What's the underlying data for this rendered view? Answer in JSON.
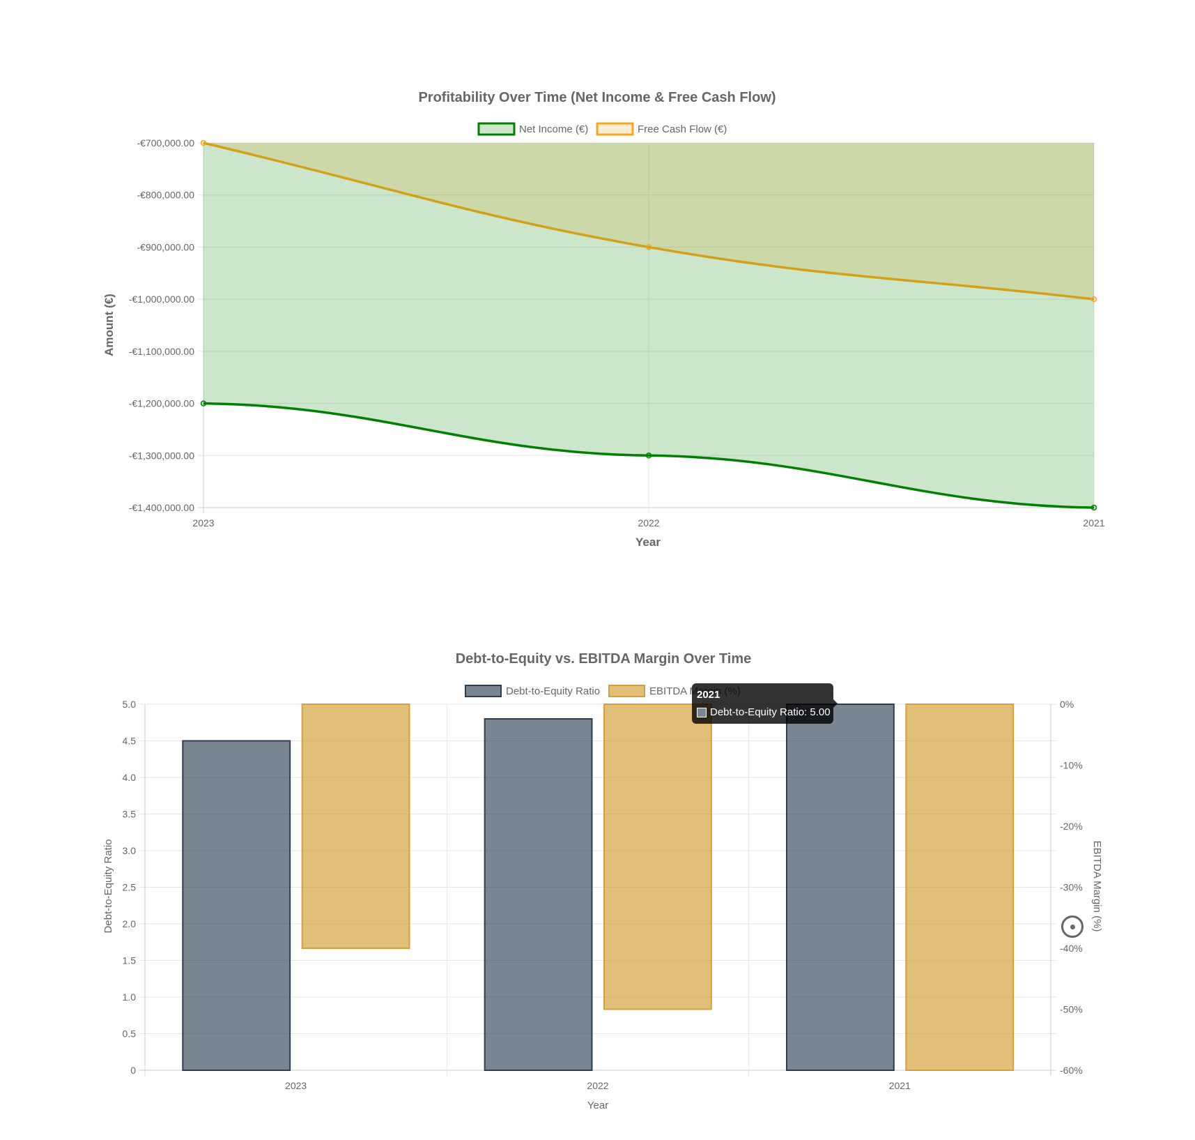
{
  "chart_data": [
    {
      "type": "area",
      "title": "Profitability Over Time (Net Income & Free Cash Flow)",
      "xlabel": "Year",
      "ylabel": "Amount (€)",
      "categories": [
        "2023",
        "2022",
        "2021"
      ],
      "ylim": [
        -1400000,
        -700000
      ],
      "yticks": [
        -700000,
        -800000,
        -900000,
        -1000000,
        -1100000,
        -1200000,
        -1300000,
        -1400000
      ],
      "ytick_labels": [
        "-€700,000.00",
        "-€800,000.00",
        "-€900,000.00",
        "-€1,000,000.00",
        "-€1,100,000.00",
        "-€1,200,000.00",
        "-€1,300,000.00",
        "-€1,400,000.00"
      ],
      "grid": true,
      "legend": "top",
      "series": [
        {
          "name": "Net Income (€)",
          "values": [
            -1200000,
            -1300000,
            -1400000
          ],
          "color": "#008000",
          "fill": "rgba(0,128,0,0.2)"
        },
        {
          "name": "Free Cash Flow (€)",
          "values": [
            -700000,
            -900000,
            -1000000
          ],
          "color": "#d4a017",
          "fill": "rgba(212,160,23,0.2)",
          "legend_color": "#f5a623"
        }
      ]
    },
    {
      "type": "bar",
      "title": "Debt-to-Equity vs. EBITDA Margin Over Time",
      "xlabel": "Year",
      "ylabel": "Debt-to-Equity Ratio",
      "y2label": "EBITDA Margin (%)",
      "categories": [
        "2023",
        "2022",
        "2021"
      ],
      "ylim": [
        0,
        5
      ],
      "y2lim": [
        -60,
        0
      ],
      "yticks": [
        "5.0",
        "4.5",
        "4.0",
        "3.5",
        "3.0",
        "2.5",
        "2.0",
        "1.5",
        "1.0",
        "0.5",
        "0"
      ],
      "y2ticks": [
        "0%",
        "-10%",
        "-20%",
        "-30%",
        "-40%",
        "-50%",
        "-60%"
      ],
      "grid": true,
      "legend": "top",
      "series": [
        {
          "name": "Debt-to-Equity Ratio",
          "axis": "left",
          "values": [
            4.5,
            4.8,
            5.0
          ],
          "color": "#2c3e50",
          "fill": "rgba(44,62,80,0.63)"
        },
        {
          "name": "EBITDA Margin (%)",
          "axis": "right",
          "values": [
            -40,
            -50,
            -60
          ],
          "color": "#d4a03a",
          "fill": "rgba(212,160,58,0.68)"
        }
      ],
      "tooltip": {
        "title": "2021",
        "label": "Debt-to-Equity Ratio: 5.00"
      }
    }
  ]
}
